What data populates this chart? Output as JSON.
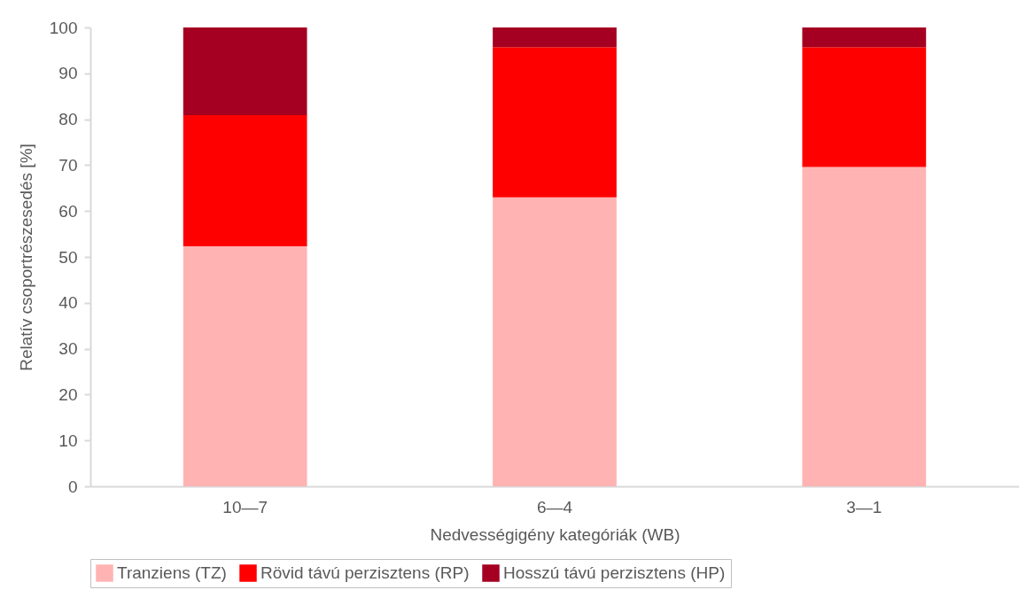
{
  "chart_data": {
    "type": "bar",
    "stacked": true,
    "xlabel": "Nedvességigény kategóriák (WB)",
    "ylabel": "Relatív csoportrészesedés [%]",
    "categories": [
      "10—7",
      "6—4",
      "3—1"
    ],
    "series": [
      {
        "name": "Tranziens (TZ)",
        "color": "#ffb3b3",
        "values": [
          52.3,
          63.0,
          69.6
        ]
      },
      {
        "name": "Rövid távú perzisztens (RP)",
        "color": "#ff0000",
        "values": [
          28.6,
          32.7,
          26.1
        ]
      },
      {
        "name": "Hosszú távú perzisztens (HP)",
        "color": "#a50021",
        "values": [
          19.1,
          4.3,
          4.3
        ]
      }
    ],
    "ylim": [
      0,
      100
    ],
    "yticks": [
      0,
      10,
      20,
      30,
      40,
      50,
      60,
      70,
      80,
      90,
      100
    ],
    "grid": false,
    "legend": "bottom"
  }
}
